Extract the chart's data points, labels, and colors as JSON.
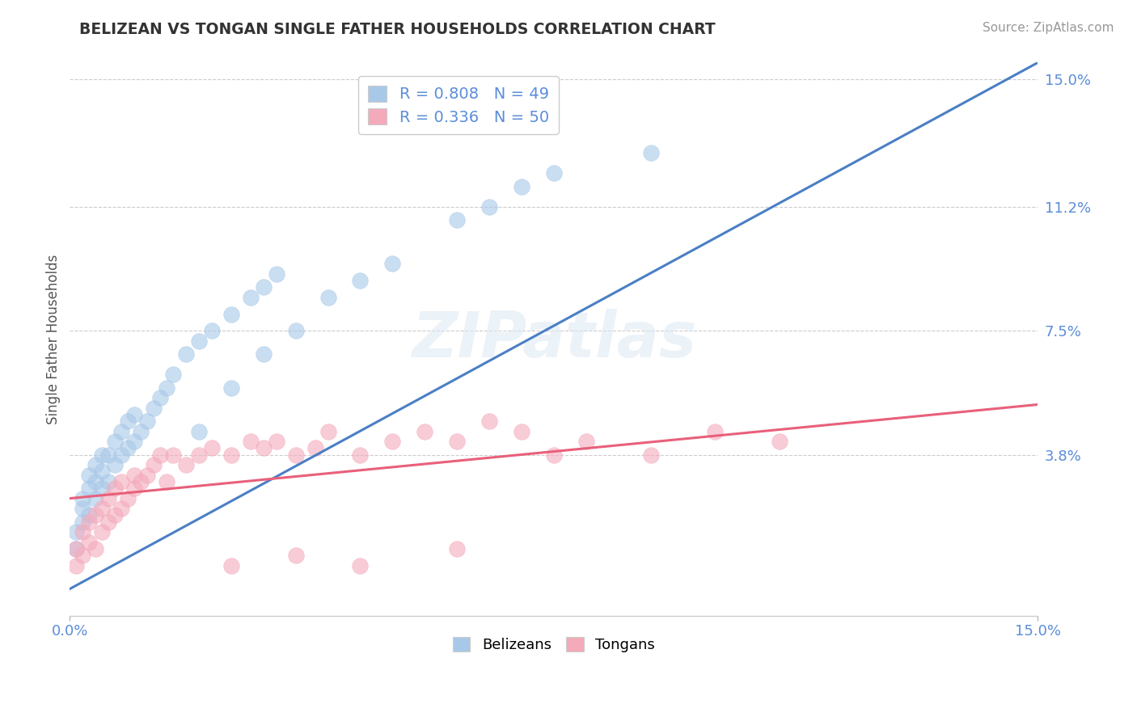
{
  "title": "BELIZEAN VS TONGAN SINGLE FATHER HOUSEHOLDS CORRELATION CHART",
  "source": "Source: ZipAtlas.com",
  "ylabel": "Single Father Households",
  "xlim": [
    0.0,
    0.15
  ],
  "ylim": [
    -0.01,
    0.155
  ],
  "yticks": [
    0.038,
    0.075,
    0.112,
    0.15
  ],
  "ytick_labels": [
    "3.8%",
    "7.5%",
    "11.2%",
    "15.0%"
  ],
  "blue_R": 0.808,
  "blue_N": 49,
  "pink_R": 0.336,
  "pink_N": 50,
  "blue_color": "#a8c8e8",
  "pink_color": "#f4aabb",
  "blue_line_color": "#4a7fc4",
  "pink_line_color": "#e8607a",
  "blue_label": "Belizeans",
  "pink_label": "Tongans",
  "axis_label_color": "#5b8dd9",
  "title_color": "#333333",
  "blue_line": {
    "x0": 0.0,
    "y0": -0.002,
    "x1": 0.15,
    "y1": 0.155
  },
  "pink_line": {
    "x0": 0.0,
    "y0": 0.025,
    "x1": 0.15,
    "y1": 0.053
  },
  "blue_x": [
    0.001,
    0.001,
    0.002,
    0.002,
    0.002,
    0.003,
    0.003,
    0.003,
    0.004,
    0.004,
    0.004,
    0.005,
    0.005,
    0.005,
    0.006,
    0.006,
    0.007,
    0.007,
    0.008,
    0.008,
    0.009,
    0.009,
    0.01,
    0.01,
    0.011,
    0.012,
    0.013,
    0.014,
    0.015,
    0.016,
    0.018,
    0.02,
    0.022,
    0.025,
    0.028,
    0.03,
    0.032,
    0.02,
    0.025,
    0.03,
    0.035,
    0.04,
    0.045,
    0.05,
    0.06,
    0.065,
    0.07,
    0.075,
    0.09
  ],
  "blue_y": [
    0.01,
    0.015,
    0.018,
    0.022,
    0.025,
    0.02,
    0.028,
    0.032,
    0.025,
    0.03,
    0.035,
    0.028,
    0.033,
    0.038,
    0.03,
    0.038,
    0.035,
    0.042,
    0.038,
    0.045,
    0.04,
    0.048,
    0.042,
    0.05,
    0.045,
    0.048,
    0.052,
    0.055,
    0.058,
    0.062,
    0.068,
    0.072,
    0.075,
    0.08,
    0.085,
    0.088,
    0.092,
    0.045,
    0.058,
    0.068,
    0.075,
    0.085,
    0.09,
    0.095,
    0.108,
    0.112,
    0.118,
    0.122,
    0.128
  ],
  "pink_x": [
    0.001,
    0.001,
    0.002,
    0.002,
    0.003,
    0.003,
    0.004,
    0.004,
    0.005,
    0.005,
    0.006,
    0.006,
    0.007,
    0.007,
    0.008,
    0.008,
    0.009,
    0.01,
    0.01,
    0.011,
    0.012,
    0.013,
    0.014,
    0.015,
    0.016,
    0.018,
    0.02,
    0.022,
    0.025,
    0.028,
    0.03,
    0.032,
    0.035,
    0.038,
    0.04,
    0.045,
    0.05,
    0.055,
    0.06,
    0.065,
    0.07,
    0.075,
    0.08,
    0.09,
    0.1,
    0.11,
    0.025,
    0.035,
    0.045,
    0.06
  ],
  "pink_y": [
    0.005,
    0.01,
    0.008,
    0.015,
    0.012,
    0.018,
    0.01,
    0.02,
    0.015,
    0.022,
    0.018,
    0.025,
    0.02,
    0.028,
    0.022,
    0.03,
    0.025,
    0.028,
    0.032,
    0.03,
    0.032,
    0.035,
    0.038,
    0.03,
    0.038,
    0.035,
    0.038,
    0.04,
    0.038,
    0.042,
    0.04,
    0.042,
    0.038,
    0.04,
    0.045,
    0.038,
    0.042,
    0.045,
    0.042,
    0.048,
    0.045,
    0.038,
    0.042,
    0.038,
    0.045,
    0.042,
    0.005,
    0.008,
    0.005,
    0.01
  ]
}
